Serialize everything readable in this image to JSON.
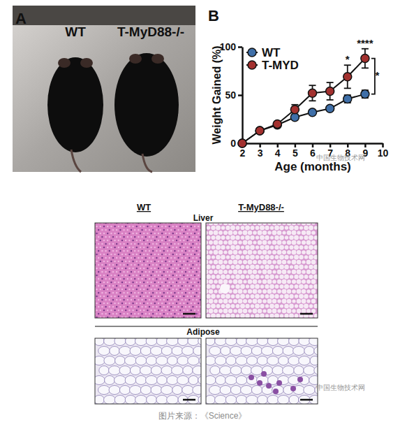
{
  "chart_data": {
    "type": "line",
    "x": [
      2,
      3,
      4,
      5,
      6,
      7,
      8,
      9
    ],
    "series": [
      {
        "name": "WT",
        "color": "#3f6fa8",
        "marker": "circle",
        "line_style": "solid",
        "values": [
          0,
          13,
          19,
          27,
          32,
          36,
          46,
          51
        ],
        "errors": [
          0,
          1,
          1,
          2,
          1,
          1,
          4,
          4
        ]
      },
      {
        "name": "T-MYD",
        "color": "#a3312f",
        "marker": "circle",
        "line_style": "solid",
        "values": [
          0,
          13,
          20,
          35,
          52,
          54,
          69,
          88
        ],
        "errors": [
          0,
          1,
          2,
          5,
          8,
          9,
          12,
          10
        ]
      }
    ],
    "xlabel": "Age (months)",
    "ylabel": "Weight Gained (%)",
    "xlim": [
      2,
      10
    ],
    "ylim": [
      0,
      100
    ],
    "xticks": [
      2,
      3,
      4,
      5,
      6,
      7,
      8,
      9,
      10
    ],
    "yticks": [
      0,
      50,
      100
    ],
    "legend": "upper left",
    "grid": false,
    "annotations": [
      {
        "text": "*",
        "x": 8,
        "y": 83
      },
      {
        "text": "****",
        "x": 9,
        "y": 100
      },
      {
        "text": "*",
        "x": 9.7,
        "y": 67
      }
    ]
  },
  "panel_labels": [
    "A",
    "B"
  ],
  "photo": {
    "labels": [
      "WT",
      "T-MyD88-/-"
    ]
  },
  "histology": {
    "column_labels": [
      "WT",
      "T-MyD88-/-"
    ],
    "rows": [
      "Liver",
      "Adipose"
    ]
  },
  "watermarks": [
    "中国生物技术网",
    "中国生物技术网"
  ],
  "caption": "图片来源：《Science》"
}
